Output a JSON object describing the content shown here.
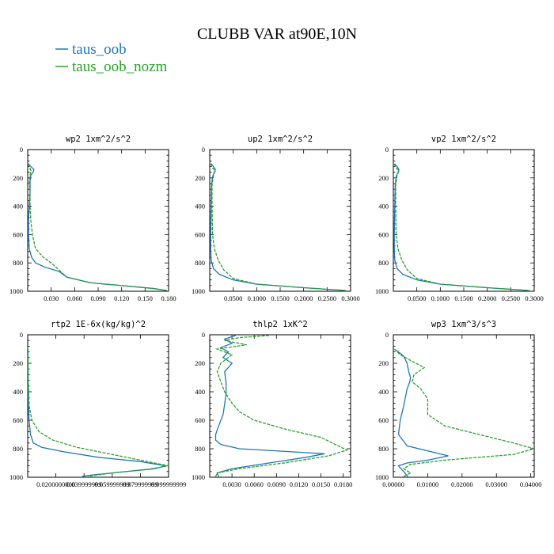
{
  "figure": {
    "title": "CLUBB VAR at90E,10N",
    "legend": [
      {
        "name": "taus_oob",
        "color": "#1f77b4"
      },
      {
        "name": "taus_oob_nozm",
        "color": "#2ca02c"
      }
    ]
  },
  "chart_data": [
    {
      "type": "line",
      "title": "wp2  1xm^2/s^2",
      "xlim": [
        0,
        0.18
      ],
      "ylim": [
        1000,
        0
      ],
      "yticks": [
        "0",
        "200",
        "400",
        "600",
        "800",
        "1000"
      ],
      "xticks": [
        "0.030",
        "0.060",
        "0.090",
        "0.120",
        "0.150",
        "0.180"
      ],
      "series": [
        {
          "name": "taus_oob",
          "x": [
            0.001,
            0.004,
            0.008,
            0.007,
            0.004,
            0.003,
            0.003,
            0.002,
            0.001,
            0.001,
            0.002,
            0.005,
            0.01,
            0.022,
            0.04,
            0.05,
            0.08,
            0.12,
            0.16,
            0.178
          ],
          "y": [
            100,
            120,
            140,
            160,
            180,
            220,
            300,
            400,
            500,
            600,
            700,
            760,
            800,
            830,
            860,
            900,
            940,
            960,
            980,
            995
          ]
        },
        {
          "name": "taus_oob_nozm",
          "x": [
            0.001,
            0.003,
            0.004,
            0.003,
            0.002,
            0.003,
            0.003,
            0.004,
            0.006,
            0.01,
            0.02,
            0.03,
            0.04,
            0.05,
            0.08,
            0.12,
            0.16,
            0.178
          ],
          "y": [
            100,
            130,
            150,
            180,
            220,
            300,
            400,
            500,
            600,
            700,
            760,
            800,
            850,
            900,
            940,
            960,
            980,
            995
          ]
        }
      ]
    },
    {
      "type": "line",
      "title": "up2  1xm^2/s^2",
      "xlim": [
        0,
        0.3
      ],
      "ylim": [
        1000,
        0
      ],
      "yticks": [
        "0",
        "200",
        "400",
        "600",
        "800",
        "1000"
      ],
      "xticks": [
        "0.0500",
        "0.1000",
        "0.1500",
        "0.2000",
        "0.2500",
        "0.3000"
      ],
      "series": [
        {
          "name": "taus_oob",
          "x": [
            0.003,
            0.008,
            0.012,
            0.01,
            0.006,
            0.004,
            0.003,
            0.002,
            0.002,
            0.003,
            0.008,
            0.02,
            0.05,
            0.1,
            0.2,
            0.29
          ],
          "y": [
            100,
            120,
            140,
            160,
            190,
            250,
            400,
            600,
            700,
            780,
            840,
            880,
            920,
            950,
            975,
            995
          ]
        },
        {
          "name": "taus_oob_nozm",
          "x": [
            0.002,
            0.006,
            0.012,
            0.008,
            0.005,
            0.005,
            0.006,
            0.01,
            0.018,
            0.03,
            0.05,
            0.1,
            0.2,
            0.29
          ],
          "y": [
            100,
            130,
            150,
            180,
            250,
            400,
            600,
            700,
            780,
            850,
            910,
            950,
            975,
            995
          ]
        }
      ]
    },
    {
      "type": "line",
      "title": "vp2  1xm^2/s^2",
      "xlim": [
        0,
        0.3
      ],
      "ylim": [
        1000,
        0
      ],
      "yticks": [
        "0",
        "200",
        "400",
        "600",
        "800",
        "1000"
      ],
      "xticks": [
        "0.0500",
        "0.1000",
        "0.1500",
        "0.2000",
        "0.2500",
        "0.3000"
      ],
      "series": [
        {
          "name": "taus_oob",
          "x": [
            0.003,
            0.008,
            0.012,
            0.01,
            0.006,
            0.004,
            0.003,
            0.002,
            0.002,
            0.003,
            0.008,
            0.02,
            0.05,
            0.1,
            0.2,
            0.29
          ],
          "y": [
            100,
            120,
            140,
            160,
            190,
            250,
            400,
            600,
            700,
            780,
            840,
            880,
            920,
            950,
            975,
            995
          ]
        },
        {
          "name": "taus_oob_nozm",
          "x": [
            0.002,
            0.006,
            0.012,
            0.008,
            0.005,
            0.005,
            0.006,
            0.01,
            0.018,
            0.03,
            0.05,
            0.1,
            0.2,
            0.29
          ],
          "y": [
            100,
            130,
            150,
            180,
            250,
            400,
            600,
            700,
            780,
            850,
            910,
            950,
            975,
            995
          ]
        }
      ]
    },
    {
      "type": "line",
      "title": "rtp2  1E-6x(kg/kg)^2",
      "xlim": [
        0,
        100
      ],
      "ylim": [
        1000,
        0
      ],
      "yticks": [
        "0",
        "200",
        "400",
        "600",
        "800",
        "1000"
      ],
      "xticks": [
        "0.0200000000",
        "0.039999999",
        "0.059999999",
        "0.079999999",
        "0.099999999"
      ],
      "series": [
        {
          "name": "taus_oob",
          "x": [
            0.2,
            0.3,
            0.5,
            1,
            2,
            4,
            10,
            25,
            50,
            80,
            98,
            90,
            60,
            40,
            38
          ],
          "y": [
            100,
            300,
            500,
            600,
            700,
            760,
            790,
            820,
            860,
            890,
            920,
            940,
            970,
            990,
            1000
          ]
        },
        {
          "name": "taus_oob_nozm",
          "x": [
            0.2,
            0.4,
            1,
            3,
            8,
            18,
            35,
            60,
            85,
            100,
            85,
            60,
            45,
            42
          ],
          "y": [
            100,
            300,
            500,
            600,
            680,
            740,
            790,
            840,
            890,
            920,
            945,
            970,
            990,
            1000
          ]
        }
      ]
    },
    {
      "type": "line",
      "title": "thlp2  1xK^2",
      "xlim": [
        0,
        0.019
      ],
      "ylim": [
        1000,
        0
      ],
      "yticks": [
        "0",
        "200",
        "400",
        "600",
        "800",
        "1000"
      ],
      "xticks": [
        "0.0030",
        "0.0060",
        "0.0090",
        "0.0120",
        "0.0150",
        "0.0180"
      ],
      "series": [
        {
          "name": "taus_oob",
          "x": [
            0.0035,
            0.002,
            0.003,
            0.0015,
            0.0025,
            0.0018,
            0.003,
            0.002,
            0.0022,
            0.0022,
            0.0018,
            0.0012,
            0.0008,
            0.0008,
            0.0015,
            0.004,
            0.0155,
            0.013,
            0.008,
            0.003,
            0.001,
            0.0012
          ],
          "y": [
            5,
            30,
            60,
            90,
            120,
            160,
            200,
            260,
            330,
            420,
            560,
            640,
            700,
            740,
            770,
            800,
            835,
            860,
            900,
            940,
            970,
            995
          ]
        },
        {
          "name": "taus_oob_nozm",
          "x": [
            0.008,
            0.004,
            0.002,
            0.005,
            0.001,
            0.003,
            0.0015,
            0.001,
            0.0015,
            0.002,
            0.003,
            0.004,
            0.006,
            0.01,
            0.015,
            0.0185,
            0.016,
            0.01,
            0.004,
            0.001,
            0.0008
          ],
          "y": [
            5,
            20,
            40,
            70,
            100,
            140,
            200,
            260,
            330,
            400,
            480,
            540,
            600,
            660,
            720,
            810,
            850,
            900,
            940,
            970,
            995
          ]
        }
      ]
    },
    {
      "type": "line",
      "title": "wp3  1xm^3/s^3",
      "xlim": [
        0,
        0.041
      ],
      "ylim": [
        1000,
        0
      ],
      "yticks": [
        "0",
        "200",
        "400",
        "600",
        "800",
        "1000"
      ],
      "xticks": [
        "0.00000",
        "0.01000",
        "0.02000",
        "0.03000",
        "0.04000"
      ],
      "series": [
        {
          "name": "taus_oob",
          "x": [
            0.0003,
            0.0015,
            0.003,
            0.004,
            0.0045,
            0.005,
            0.0048,
            0.004,
            0.003,
            0.002,
            0.0015,
            0.004,
            0.016,
            0.01,
            0.004,
            0.0015,
            0.003,
            0.0042
          ],
          "y": [
            100,
            120,
            150,
            200,
            260,
            300,
            330,
            380,
            500,
            600,
            700,
            780,
            850,
            880,
            900,
            920,
            960,
            995
          ]
        },
        {
          "name": "taus_oob_nozm",
          "x": [
            0.0003,
            0.002,
            0.005,
            0.009,
            0.006,
            0.0055,
            0.008,
            0.01,
            0.01,
            0.015,
            0.025,
            0.035,
            0.041,
            0.035,
            0.015,
            0.005,
            0.003,
            0.005,
            0.003
          ],
          "y": [
            100,
            140,
            180,
            230,
            280,
            330,
            380,
            450,
            560,
            640,
            700,
            760,
            800,
            840,
            880,
            910,
            940,
            970,
            995
          ]
        }
      ]
    }
  ]
}
